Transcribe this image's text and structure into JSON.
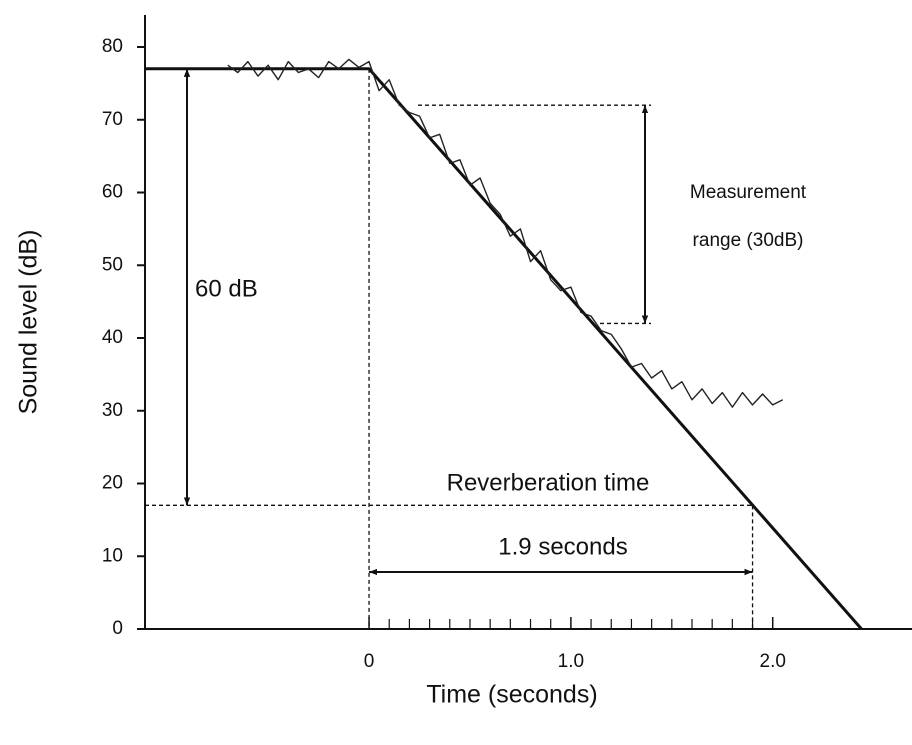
{
  "chart_data": {
    "type": "line",
    "xlabel": "Time (seconds)",
    "ylabel": "Sound level (dB)",
    "xlim": [
      -1.11,
      2.69
    ],
    "ylim": [
      0,
      84.4
    ],
    "xticks": [
      0,
      {
        "value": 1,
        "label": "1.0"
      },
      {
        "value": 2,
        "label": "2.0"
      }
    ],
    "xminorticks": [
      0.1,
      0.2,
      0.3,
      0.4,
      0.5,
      0.6,
      0.7,
      0.8,
      0.9,
      1.1,
      1.2,
      1.3,
      1.4,
      1.5,
      1.6,
      1.7,
      1.8,
      1.9
    ],
    "yticks": [
      0,
      10,
      20,
      30,
      40,
      50,
      60,
      70,
      80
    ],
    "series": [
      {
        "color": "#111111",
        "x": [
          -1.11,
          0,
          2.44
        ],
        "values": [
          77,
          77,
          0
        ]
      },
      {
        "color": "#222222",
        "x": [
          -0.7,
          -0.65,
          -0.6,
          -0.55,
          -0.5,
          -0.45,
          -0.4,
          -0.35,
          -0.3,
          -0.25,
          -0.2,
          -0.15,
          -0.1,
          -0.05,
          0,
          0.05,
          0.1,
          0.15,
          0.2,
          0.25,
          0.3,
          0.35,
          0.4,
          0.45,
          0.5,
          0.55,
          0.6,
          0.65,
          0.7,
          0.75,
          0.8,
          0.85,
          0.9,
          0.95,
          1.0,
          1.05,
          1.1,
          1.15,
          1.2,
          1.25,
          1.3,
          1.35,
          1.4,
          1.45,
          1.5,
          1.55,
          1.6,
          1.65,
          1.7,
          1.75,
          1.8,
          1.85,
          1.9,
          1.95,
          2.0,
          2.05
        ],
        "values": [
          77.5,
          76.5,
          78,
          76,
          77.5,
          75.5,
          78,
          76.5,
          77,
          75.8,
          78,
          77,
          78.3,
          77.2,
          78,
          74,
          75.5,
          72,
          71,
          70.5,
          67.5,
          68,
          64,
          64.5,
          61,
          62,
          58.5,
          57,
          54,
          55,
          50.5,
          52,
          48,
          46.5,
          47,
          43.5,
          43,
          41,
          40.5,
          38.5,
          36,
          36.5,
          34.5,
          35.5,
          33,
          34,
          31.5,
          33,
          31,
          32.5,
          30.5,
          32.5,
          30.8,
          32.3,
          30.8,
          31.5
        ]
      }
    ],
    "annotations": {
      "decay": {
        "label": "60 dB",
        "from": 77,
        "to": 17
      },
      "measurement_range": {
        "lines": [
          "Measurement",
          "range (30dB)"
        ],
        "from": 72,
        "to": 42
      },
      "reverberation_time": {
        "title": "Reverberation time",
        "label": "1.9 seconds",
        "from": 0,
        "to": 1.9
      }
    }
  }
}
